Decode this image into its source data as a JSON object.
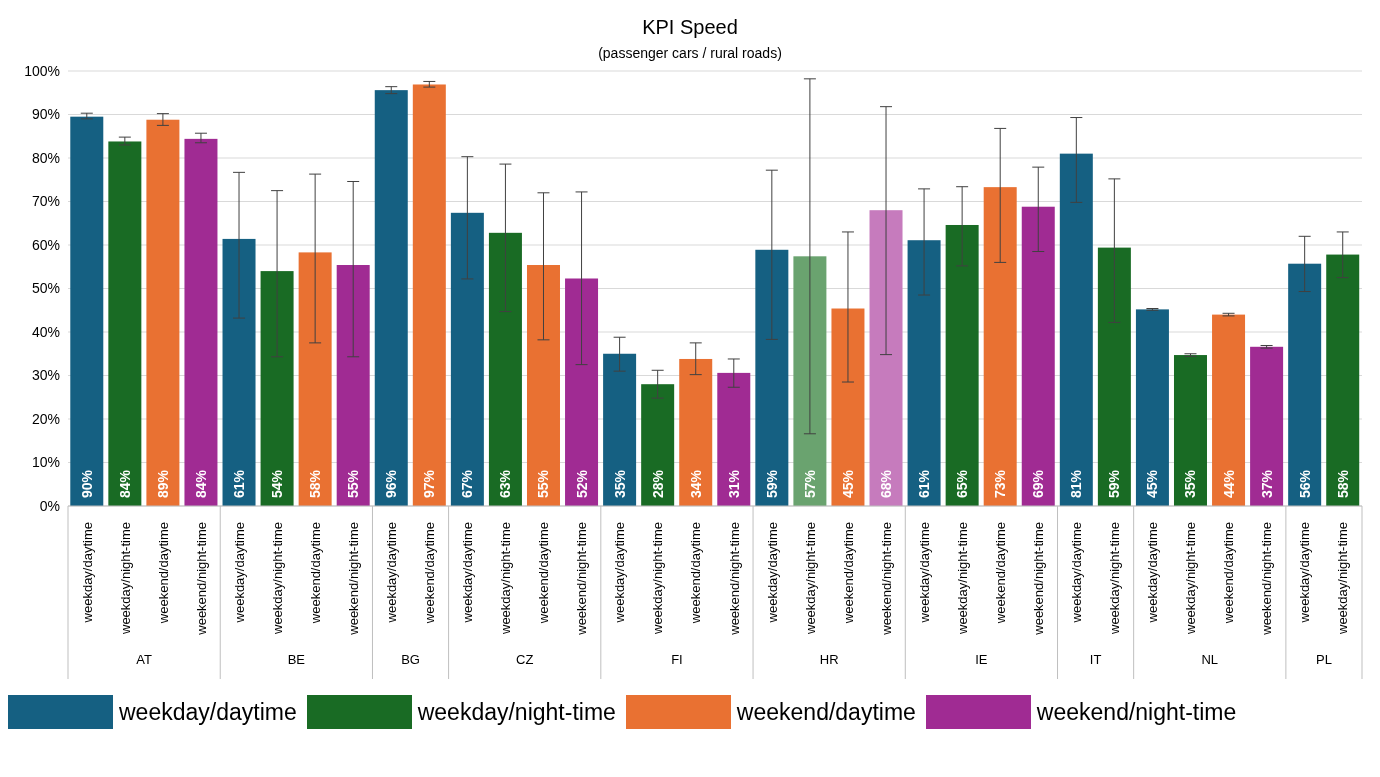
{
  "chart_data": {
    "type": "bar",
    "title": "KPI Speed",
    "subtitle": "(passenger cars / rural roads)",
    "categories": [
      "weekday/daytime",
      "weekday/night-time",
      "weekend/daytime",
      "weekend/night-time",
      "weekday/daytime",
      "weekday/night-time",
      "weekend/daytime",
      "weekend/night-time",
      "weekday/daytime",
      "weekend/daytime",
      "weekday/daytime",
      "weekday/night-time",
      "weekend/daytime",
      "weekend/night-time",
      "weekday/daytime",
      "weekday/night-time",
      "weekend/daytime",
      "weekend/night-time",
      "weekday/daytime",
      "weekday/night-time",
      "weekend/daytime",
      "weekend/night-time",
      "weekday/daytime",
      "weekday/night-time",
      "weekend/daytime",
      "weekend/night-time",
      "weekday/daytime",
      "weekday/night-time",
      "weekday/daytime",
      "weekday/night-time",
      "weekend/daytime",
      "weekend/night-time",
      "weekday/daytime",
      "weekday/night-time"
    ],
    "annotations": [
      "AT",
      "BE",
      "BG",
      "CZ",
      "FI",
      "HR",
      "IE",
      "IT",
      "NL",
      "PL"
    ],
    "stacked": true,
    "series": [
      {
        "name": "weekday/daytime",
        "color": "#156082",
        "values": [
          89.5,
          null,
          null,
          null,
          61.4,
          null,
          null,
          null,
          95.6,
          null,
          67.4,
          null,
          null,
          null,
          35,
          null,
          null,
          null,
          58.9,
          null,
          null,
          null,
          61.1,
          null,
          null,
          null,
          81,
          null,
          45.2,
          null,
          null,
          null,
          55.7,
          null
        ],
        "errors": [
          [
            89,
            90.3
          ],
          null,
          null,
          null,
          [
            43.2,
            76.7
          ],
          null,
          null,
          null,
          [
            94.8,
            96.4
          ],
          null,
          [
            52.2,
            80.3
          ],
          null,
          null,
          null,
          [
            31,
            38.8
          ],
          null,
          null,
          null,
          [
            38.3,
            77.2
          ],
          null,
          null,
          null,
          [
            48.5,
            72.9
          ],
          null,
          null,
          null,
          [
            69.8,
            89.3
          ],
          null,
          [
            45,
            45.4
          ],
          null,
          null,
          null,
          [
            49.3,
            62
          ],
          null
        ],
        "value_labels": [
          "90%",
          null,
          null,
          null,
          "61%",
          null,
          null,
          null,
          "96%",
          null,
          "67%",
          null,
          null,
          null,
          "35%",
          null,
          null,
          null,
          "59%",
          null,
          null,
          null,
          "61%",
          null,
          null,
          null,
          "81%",
          null,
          "45%",
          null,
          null,
          null,
          "56%",
          null
        ]
      },
      {
        "name": "weekday/night-time",
        "color": "#196b24",
        "values": [
          null,
          83.8,
          null,
          null,
          null,
          54,
          null,
          null,
          null,
          null,
          null,
          62.8,
          null,
          null,
          null,
          28,
          null,
          null,
          null,
          57.4,
          null,
          null,
          null,
          64.6,
          null,
          null,
          null,
          59.4,
          null,
          34.7,
          null,
          null,
          null,
          57.8
        ],
        "errors": [
          null,
          [
            83,
            84.8
          ],
          null,
          null,
          null,
          [
            34.3,
            72.5
          ],
          null,
          null,
          null,
          null,
          null,
          [
            44.7,
            78.6
          ],
          null,
          null,
          null,
          [
            24.8,
            31.2
          ],
          null,
          null,
          null,
          [
            16.6,
            98.2
          ],
          null,
          null,
          null,
          [
            55.2,
            73.4
          ],
          null,
          null,
          null,
          [
            42.2,
            75.2
          ],
          null,
          [
            34.4,
            35
          ],
          null,
          null,
          null,
          [
            52.5,
            63
          ]
        ],
        "value_labels": [
          null,
          "84%",
          null,
          null,
          null,
          "54%",
          null,
          null,
          null,
          null,
          null,
          "63%",
          null,
          null,
          null,
          "28%",
          null,
          null,
          null,
          "57%",
          null,
          null,
          null,
          "65%",
          null,
          null,
          null,
          "59%",
          null,
          "35%",
          null,
          null,
          null,
          "58%"
        ],
        "colors": [
          null,
          "#196b24",
          null,
          null,
          null,
          "#196b24",
          null,
          null,
          null,
          null,
          null,
          "#196b24",
          null,
          null,
          null,
          "#196b24",
          null,
          null,
          null,
          "#6aa36f",
          null,
          null,
          null,
          "#196b24",
          null,
          null,
          null,
          "#196b24",
          null,
          "#196b24",
          null,
          null,
          null,
          "#196b24"
        ]
      },
      {
        "name": "weekend/daytime",
        "color": "#e97132",
        "values": [
          null,
          null,
          88.8,
          null,
          null,
          null,
          58.3,
          null,
          null,
          96.9,
          null,
          null,
          55.4,
          null,
          null,
          null,
          33.8,
          null,
          null,
          null,
          45.4,
          null,
          null,
          null,
          73.3,
          null,
          null,
          null,
          null,
          null,
          44,
          null,
          null,
          null
        ],
        "errors": [
          null,
          null,
          [
            87.5,
            90.2
          ],
          null,
          null,
          null,
          [
            37.5,
            76.3
          ],
          null,
          null,
          [
            96.3,
            97.6
          ],
          null,
          null,
          [
            38.2,
            72
          ],
          null,
          null,
          null,
          [
            30.2,
            37.5
          ],
          null,
          null,
          null,
          [
            28.5,
            63
          ],
          null,
          null,
          null,
          [
            56,
            86.8
          ],
          null,
          null,
          null,
          null,
          null,
          [
            43.7,
            44.3
          ],
          null,
          null,
          null
        ],
        "value_labels": [
          null,
          null,
          "89%",
          null,
          null,
          null,
          "58%",
          null,
          null,
          "97%",
          null,
          null,
          "55%",
          null,
          null,
          null,
          "34%",
          null,
          null,
          null,
          "45%",
          null,
          null,
          null,
          "73%",
          null,
          null,
          null,
          null,
          null,
          "44%",
          null,
          null,
          null
        ]
      },
      {
        "name": "weekend/night-time",
        "color": "#a02b93",
        "values": [
          null,
          null,
          null,
          84.4,
          null,
          null,
          null,
          55.4,
          null,
          null,
          null,
          null,
          null,
          52.3,
          null,
          null,
          null,
          30.6,
          null,
          null,
          null,
          68,
          null,
          null,
          null,
          68.8,
          null,
          null,
          null,
          null,
          null,
          36.6,
          null,
          null
        ],
        "errors": [
          null,
          null,
          null,
          [
            83.5,
            85.7
          ],
          null,
          null,
          null,
          [
            34.3,
            74.6
          ],
          null,
          null,
          null,
          null,
          null,
          [
            32.5,
            72.2
          ],
          null,
          null,
          null,
          [
            27.3,
            33.8
          ],
          null,
          null,
          null,
          [
            34.8,
            91.8
          ],
          null,
          null,
          null,
          [
            58.5,
            77.9
          ],
          null,
          null,
          null,
          null,
          null,
          [
            36.3,
            36.9
          ],
          null,
          null
        ],
        "value_labels": [
          null,
          null,
          null,
          "84%",
          null,
          null,
          null,
          "55%",
          null,
          null,
          null,
          null,
          null,
          "52%",
          null,
          null,
          null,
          "31%",
          null,
          null,
          null,
          "68%",
          null,
          null,
          null,
          "69%",
          null,
          null,
          null,
          null,
          null,
          "37%",
          null,
          null
        ],
        "colors": [
          null,
          null,
          null,
          "#a02b93",
          null,
          null,
          null,
          "#a02b93",
          null,
          null,
          null,
          null,
          null,
          "#a02b93",
          null,
          null,
          null,
          "#a02b93",
          null,
          null,
          null,
          "#c67bbd",
          null,
          null,
          null,
          "#a02b93",
          null,
          null,
          null,
          null,
          null,
          "#a02b93",
          null,
          null
        ]
      }
    ],
    "ylim": [
      0,
      100
    ],
    "yticks": [
      {
        "value": 0,
        "label": "0%"
      },
      {
        "value": 10,
        "label": "10%"
      },
      {
        "value": 20,
        "label": "20%"
      },
      {
        "value": 30,
        "label": "30%"
      },
      {
        "value": 40,
        "label": "40%"
      },
      {
        "value": 50,
        "label": "50%"
      },
      {
        "value": 60,
        "label": "60%"
      },
      {
        "value": 70,
        "label": "70%"
      },
      {
        "value": 80,
        "label": "80%"
      },
      {
        "value": 90,
        "label": "90%"
      },
      {
        "value": 100,
        "label": "100%"
      }
    ],
    "grid": "y",
    "legend": "bottom"
  }
}
